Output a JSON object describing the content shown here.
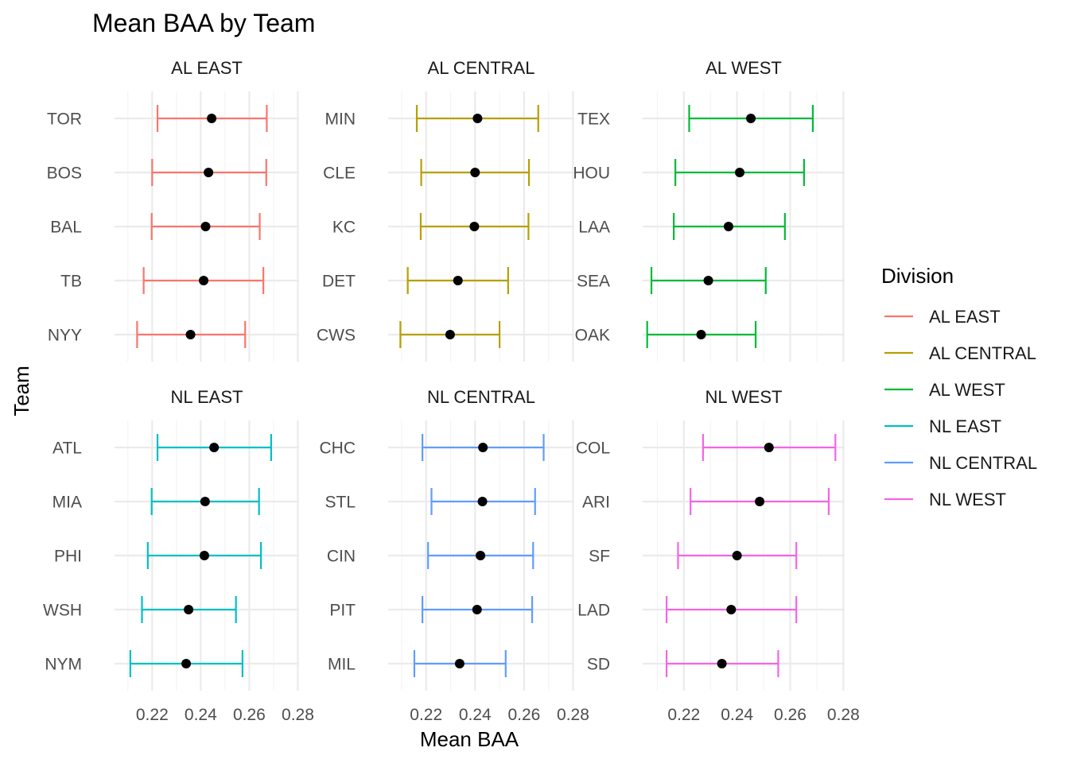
{
  "chart_data": {
    "type": "errorbar",
    "title": "Mean BAA by Team",
    "xlabel": "Mean BAA",
    "ylabel": "Team",
    "xlim": [
      0.2045,
      0.2805
    ],
    "x_ticks": [
      0.22,
      0.24,
      0.26,
      0.28
    ],
    "x_tick_labels": [
      "0.22",
      "0.24",
      "0.26",
      "0.28"
    ],
    "grid": true,
    "legend": {
      "title": "Division",
      "position": "right",
      "entries": [
        {
          "label": "AL EAST",
          "color": "#F8766D"
        },
        {
          "label": "AL CENTRAL",
          "color": "#B79F00"
        },
        {
          "label": "AL WEST",
          "color": "#00BA38"
        },
        {
          "label": "NL EAST",
          "color": "#00BFC4"
        },
        {
          "label": "NL CENTRAL",
          "color": "#619CFF"
        },
        {
          "label": "NL WEST",
          "color": "#F564E3"
        }
      ]
    },
    "panels": [
      {
        "division": "AL EAST",
        "color": "#F8766D",
        "teams": [
          {
            "team": "TOR",
            "mean": 0.2445,
            "low": 0.2222,
            "high": 0.2672
          },
          {
            "team": "BOS",
            "mean": 0.2432,
            "low": 0.22,
            "high": 0.267
          },
          {
            "team": "BAL",
            "mean": 0.242,
            "low": 0.2198,
            "high": 0.2643
          },
          {
            "team": "TB",
            "mean": 0.2412,
            "low": 0.2165,
            "high": 0.2658
          },
          {
            "team": "NYY",
            "mean": 0.2358,
            "low": 0.2138,
            "high": 0.2583
          }
        ]
      },
      {
        "division": "AL CENTRAL",
        "color": "#B79F00",
        "teams": [
          {
            "team": "MIN",
            "mean": 0.241,
            "low": 0.2162,
            "high": 0.2658
          },
          {
            "team": "CLE",
            "mean": 0.24,
            "low": 0.218,
            "high": 0.262
          },
          {
            "team": "KC",
            "mean": 0.2397,
            "low": 0.2178,
            "high": 0.2618
          },
          {
            "team": "DET",
            "mean": 0.233,
            "low": 0.2125,
            "high": 0.2535
          },
          {
            "team": "CWS",
            "mean": 0.2298,
            "low": 0.2095,
            "high": 0.25
          }
        ]
      },
      {
        "division": "AL WEST",
        "color": "#00BA38",
        "teams": [
          {
            "team": "TEX",
            "mean": 0.2452,
            "low": 0.222,
            "high": 0.2685
          },
          {
            "team": "HOU",
            "mean": 0.241,
            "low": 0.2168,
            "high": 0.2652
          },
          {
            "team": "LAA",
            "mean": 0.2368,
            "low": 0.2162,
            "high": 0.258
          },
          {
            "team": "SEA",
            "mean": 0.2292,
            "low": 0.2078,
            "high": 0.2508
          },
          {
            "team": "OAK",
            "mean": 0.2265,
            "low": 0.2062,
            "high": 0.247
          }
        ]
      },
      {
        "division": "NL EAST",
        "color": "#00BFC4",
        "teams": [
          {
            "team": "ATL",
            "mean": 0.2455,
            "low": 0.2222,
            "high": 0.269
          },
          {
            "team": "MIA",
            "mean": 0.2418,
            "low": 0.2198,
            "high": 0.264
          },
          {
            "team": "PHI",
            "mean": 0.2415,
            "low": 0.2182,
            "high": 0.2648
          },
          {
            "team": "WSH",
            "mean": 0.235,
            "low": 0.2158,
            "high": 0.2545
          },
          {
            "team": "NYM",
            "mean": 0.234,
            "low": 0.211,
            "high": 0.2572
          }
        ]
      },
      {
        "division": "NL CENTRAL",
        "color": "#619CFF",
        "teams": [
          {
            "team": "CHC",
            "mean": 0.2432,
            "low": 0.2185,
            "high": 0.268
          },
          {
            "team": "STL",
            "mean": 0.243,
            "low": 0.2222,
            "high": 0.2645
          },
          {
            "team": "CIN",
            "mean": 0.2422,
            "low": 0.2208,
            "high": 0.2637
          },
          {
            "team": "PIT",
            "mean": 0.2408,
            "low": 0.2185,
            "high": 0.2633
          },
          {
            "team": "MIL",
            "mean": 0.2337,
            "low": 0.2152,
            "high": 0.2525
          }
        ]
      },
      {
        "division": "NL WEST",
        "color": "#F564E3",
        "teams": [
          {
            "team": "COL",
            "mean": 0.252,
            "low": 0.2272,
            "high": 0.277
          },
          {
            "team": "ARI",
            "mean": 0.2485,
            "low": 0.2225,
            "high": 0.2745
          },
          {
            "team": "SF",
            "mean": 0.24,
            "low": 0.2178,
            "high": 0.2623
          },
          {
            "team": "LAD",
            "mean": 0.2378,
            "low": 0.2135,
            "high": 0.2623
          },
          {
            "team": "SD",
            "mean": 0.2343,
            "low": 0.2135,
            "high": 0.2555
          }
        ]
      }
    ]
  }
}
